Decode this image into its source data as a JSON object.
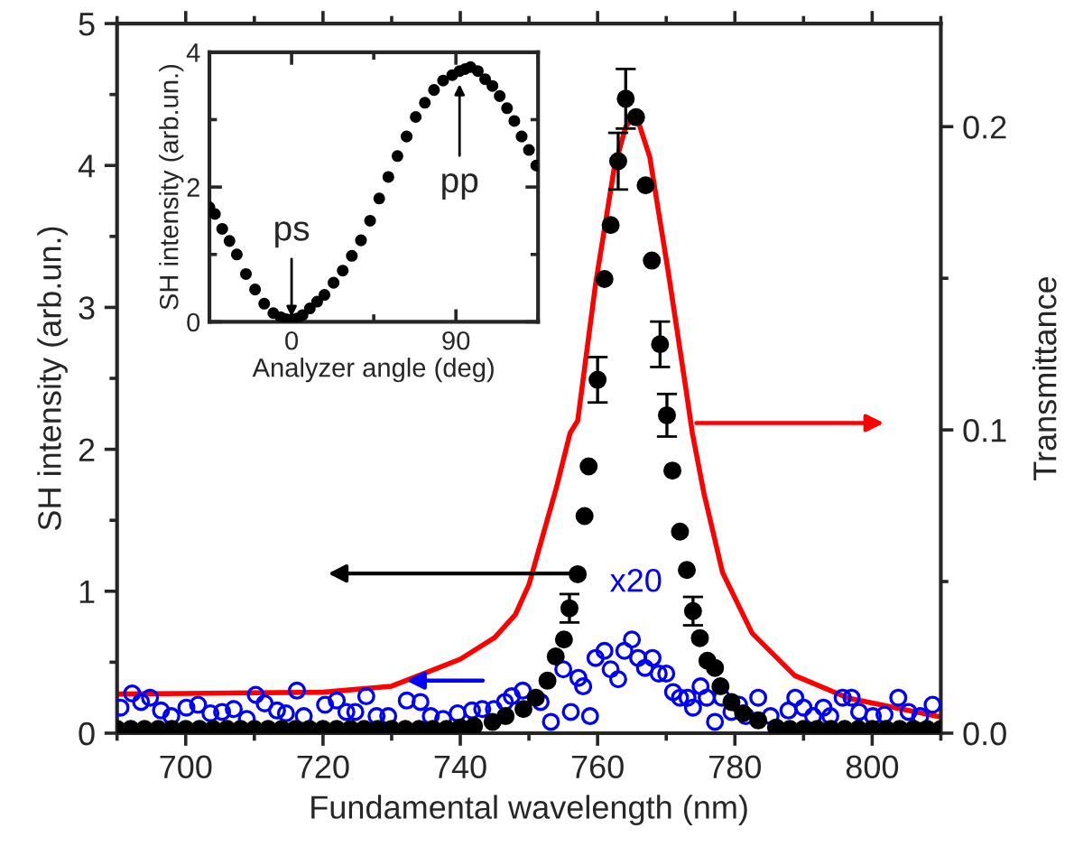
{
  "chart_data": [
    {
      "type": "scatter",
      "xlabel": "Fundamental wavelength (nm)",
      "ylabel": "SH intensity (arb.un.)",
      "y2label": "Transmittance",
      "xlim": [
        690,
        810
      ],
      "xticks": [
        700,
        720,
        740,
        760,
        780,
        800
      ],
      "ylim": [
        0,
        5
      ],
      "yticks": [
        0,
        1,
        2,
        3,
        4,
        5
      ],
      "y2lim": [
        0,
        0.234
      ],
      "y2ticks": [
        {
          "value": 0,
          "label": "0.0"
        },
        0.1,
        0.2
      ],
      "annotations": [
        "x20"
      ],
      "series": [
        {
          "type": "scatter",
          "color": "#0000ff",
          "marker": "circle",
          "x": [
            690.5,
            692.2,
            693.5,
            694.8,
            696.4,
            697.9,
            700.1,
            701.8,
            703.6,
            705.3,
            707,
            708.9,
            710.2,
            711.5,
            713.3,
            714.6,
            716.2,
            717.2,
            720.3,
            722,
            723.4,
            724.7,
            726.3,
            727.8,
            729.5,
            732.2,
            734.2,
            735.7,
            737.5,
            739.6,
            741.7,
            743.2,
            744.9,
            746.5,
            747.5,
            749.1,
            751.7,
            753.2,
            755,
            756.1,
            757.2,
            757.9,
            758.9,
            759.7,
            761,
            761.9,
            763,
            763.9,
            765,
            765.9,
            766.9,
            768,
            768.9,
            770,
            771,
            772,
            773.1,
            773.9,
            775,
            775.9,
            777.1,
            778.1,
            779.5,
            780.6,
            781.6,
            783.4,
            785.2,
            786.5,
            787.8,
            788.8,
            790,
            791.4,
            792.9,
            793.9,
            795.7,
            797,
            798.1,
            800.1,
            801.8,
            803.8,
            805.3,
            807,
            808.8
          ],
          "values": [
            0.18,
            0.28,
            0.22,
            0.25,
            0.16,
            0.12,
            0.18,
            0.2,
            0.14,
            0.15,
            0.17,
            0.1,
            0.27,
            0.21,
            0.16,
            0.14,
            0.3,
            0.12,
            0.2,
            0.23,
            0.15,
            0.15,
            0.26,
            0.12,
            0.12,
            0.23,
            0.22,
            0.12,
            0.1,
            0.14,
            0.16,
            0.17,
            0.17,
            0.22,
            0.26,
            0.3,
            0.22,
            0.08,
            0.45,
            0.15,
            0.39,
            0.33,
            0.12,
            0.53,
            0.58,
            0.45,
            0.38,
            0.58,
            0.66,
            0.53,
            0.46,
            0.53,
            0.42,
            0.42,
            0.29,
            0.25,
            0.25,
            0.18,
            0.33,
            0.25,
            0.08,
            0.25,
            0.15,
            0.2,
            0.12,
            0.25,
            0.12,
            null,
            0.16,
            0.25,
            0.18,
            0.12,
            0.18,
            0.12,
            0.25,
            0.25,
            0.15,
            0.12,
            0.13,
            0.25,
            0.15,
            0.12,
            0.2
          ]
        },
        {
          "type": "line",
          "color": "#ff0000",
          "axis": "y2",
          "line_style": "solid",
          "marker": "none",
          "x": [
            690,
            700,
            720,
            730,
            740,
            745,
            748,
            750,
            752,
            754,
            756,
            757.1,
            759.7,
            762.4,
            764.1,
            765.6,
            767.6,
            770.3,
            772.9,
            773.8,
            775.5,
            778.2,
            782.5,
            788.7,
            796.6,
            809.6
          ],
          "values": [
            0.0129,
            0.0131,
            0.0135,
            0.0155,
            0.0244,
            0.0315,
            0.039,
            0.049,
            0.065,
            0.081,
            0.099,
            0.103,
            0.148,
            0.186,
            0.2,
            0.204,
            0.19,
            0.152,
            0.113,
            0.099,
            0.079,
            0.053,
            0.033,
            0.019,
            0.0115,
            0.0055
          ]
        },
        {
          "type": "scatter",
          "color": "#000000",
          "marker": "circle",
          "x": [
            690,
            692,
            694,
            696,
            698,
            700,
            702,
            704,
            706,
            708,
            710,
            712,
            714,
            716,
            718,
            720,
            722,
            724,
            726,
            728,
            730,
            732,
            734,
            736,
            738,
            740,
            742,
            744.7,
            746.6,
            749.2,
            751,
            752.7,
            753.9,
            755.1,
            755.9,
            757.1,
            758.1,
            758.7,
            760,
            761,
            761.9,
            763,
            764.1,
            765.6,
            767,
            767.9,
            769.1,
            770.1,
            770.9,
            772,
            773,
            773.9,
            774.9,
            776,
            777.1,
            777.9,
            779.5,
            781.2,
            783.4,
            786,
            788,
            790,
            792,
            794,
            796,
            798,
            800,
            802,
            804,
            806,
            808,
            810
          ],
          "values": [
            0.03,
            0.03,
            0.03,
            0.03,
            0.03,
            0.03,
            0.03,
            0.03,
            0.03,
            0.03,
            0.03,
            0.03,
            0.03,
            0.03,
            0.03,
            0.03,
            0.03,
            0.03,
            0.03,
            0.03,
            0.03,
            0.03,
            0.03,
            0.03,
            0.03,
            0.04,
            0.05,
            0.08,
            0.12,
            0.17,
            0.25,
            0.37,
            0.54,
            0.66,
            0.88,
            1.12,
            1.53,
            1.88,
            2.49,
            3.2,
            3.58,
            4.03,
            4.47,
            4.34,
            3.86,
            3.33,
            2.74,
            2.24,
            1.85,
            1.42,
            1.15,
            0.86,
            0.67,
            0.51,
            0.46,
            0.33,
            0.22,
            0.14,
            0.09,
            0.04,
            0.03,
            0.03,
            0.03,
            0.03,
            0.03,
            0.03,
            0.03,
            0.03,
            0.03,
            0.03,
            0.03,
            0.03
          ],
          "errors": [
            null,
            null,
            null,
            null,
            null,
            null,
            null,
            null,
            null,
            null,
            null,
            null,
            null,
            null,
            null,
            null,
            null,
            null,
            null,
            null,
            null,
            null,
            null,
            null,
            null,
            null,
            null,
            null,
            null,
            null,
            null,
            null,
            null,
            null,
            0.1,
            null,
            null,
            null,
            0.16,
            null,
            null,
            0.2,
            0.21,
            null,
            null,
            null,
            0.16,
            0.15,
            null,
            null,
            null,
            0.1,
            null,
            null,
            null,
            null,
            null,
            null,
            null,
            null,
            null,
            null,
            null,
            null,
            null,
            null,
            null,
            null,
            null,
            null,
            null,
            null
          ]
        }
      ]
    },
    {
      "type": "scatter",
      "xlabel": "Analyzer angle (deg)",
      "ylabel": "SH intensity (arb.un.)",
      "xlim": [
        -45,
        135
      ],
      "xticks": [
        0,
        90
      ],
      "ylim": [
        0,
        4
      ],
      "yticks": [
        0,
        2,
        4
      ],
      "annotations": [
        {
          "text": "ps",
          "x": 0,
          "y": 0
        },
        {
          "text": "pp",
          "x": 92,
          "y": 3.6
        }
      ],
      "series": [
        {
          "type": "scatter",
          "color": "#000000",
          "marker": "circle",
          "x": [
            -45,
            -42,
            -38,
            -34,
            -30,
            -25,
            -20,
            -15,
            -10,
            -6,
            -3,
            0,
            3,
            6,
            10,
            14,
            18,
            23,
            28,
            33,
            38,
            43,
            48,
            53,
            58,
            63,
            68,
            73,
            78,
            83,
            88,
            92,
            95,
            98,
            102,
            106,
            110,
            114,
            118,
            122,
            126,
            130,
            134
          ],
          "values": [
            1.7,
            1.6,
            1.38,
            1.2,
            1.0,
            0.71,
            0.48,
            0.27,
            0.13,
            0.07,
            0.04,
            0.03,
            0.05,
            0.1,
            0.2,
            0.3,
            0.4,
            0.58,
            0.76,
            0.98,
            1.21,
            1.5,
            1.83,
            2.15,
            2.46,
            2.75,
            3.04,
            3.25,
            3.44,
            3.58,
            3.66,
            3.72,
            3.75,
            3.78,
            3.72,
            3.6,
            3.5,
            3.35,
            3.17,
            2.98,
            2.75,
            2.55,
            2.32
          ]
        }
      ]
    }
  ]
}
